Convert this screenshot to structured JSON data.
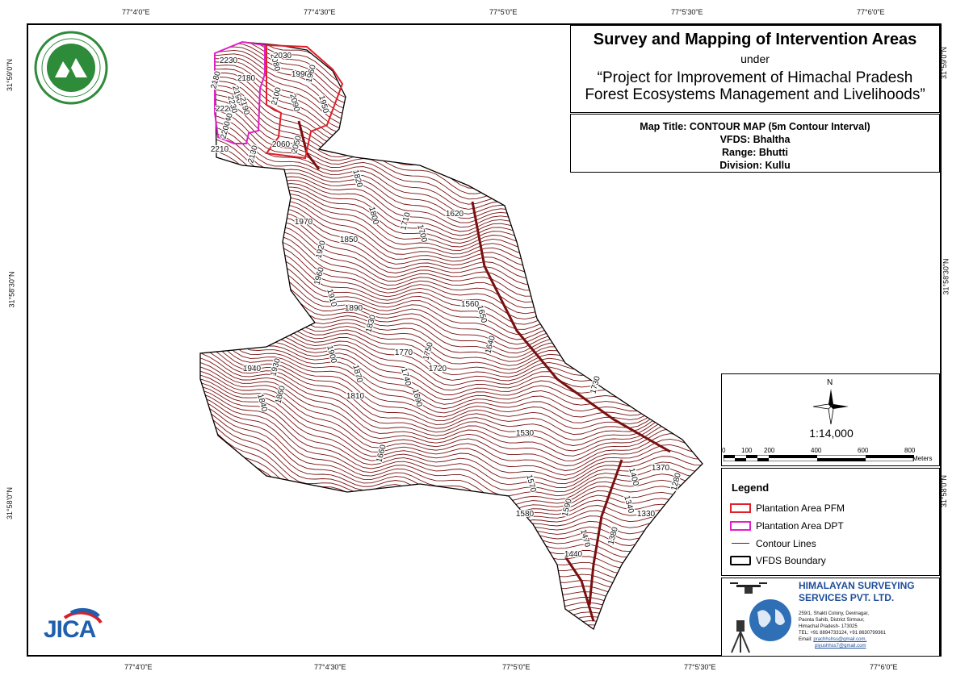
{
  "title": {
    "main": "Survey and Mapping of Intervention Areas",
    "under": "under",
    "project_line1": "“Project for Improvement of Himachal Pradesh",
    "project_line2": "Forest Ecosystems Management and Livelihoods”"
  },
  "map_info": {
    "map_title": "Map Title: CONTOUR MAP (5m Contour Interval)",
    "vfds": "VFDS: Bhaltha",
    "range": "Range: Bhutti",
    "division": "Division: Kullu"
  },
  "grid": {
    "top": [
      "77°4'0\"E",
      "77°4'30\"E",
      "77°5'0\"E",
      "77°5'30\"E",
      "77°6'0\"E"
    ],
    "bottom": [
      "77°4'0\"E",
      "77°4'30\"E",
      "77°5'0\"E",
      "77°5'30\"E",
      "77°6'0\"E"
    ],
    "left": [
      "31°59'0\"N",
      "31°58'30\"N",
      "31°58'0\"N"
    ],
    "right": [
      "31°59'0\"N",
      "31°58'30\"N",
      "31°58'0\"N"
    ]
  },
  "scale": {
    "north": "N",
    "ratio": "1:14,000",
    "ticks": [
      "0",
      "100",
      "200",
      "400",
      "600",
      "800"
    ],
    "unit": "Meters"
  },
  "legend": {
    "title": "Legend",
    "items": [
      {
        "label": "Plantation Area PFM",
        "color": "#e0202a",
        "kind": "box"
      },
      {
        "label": "Plantation Area DPT",
        "color": "#e020c8",
        "kind": "box"
      },
      {
        "label": "Contour Lines",
        "color": "#7a1010",
        "kind": "line"
      },
      {
        "label": "VFDS Boundary",
        "color": "#000000",
        "kind": "box"
      }
    ]
  },
  "company": {
    "name_line1": "HIMALAYAN SURVEYING",
    "name_line2": "SERVICES PVT. LTD.",
    "address": [
      "259/1, Shakti Colony, Devinagar,",
      "Paonta Sahib, District Sirmour,",
      "Himachal Pradesh- 173025",
      "TEL: +91 8894733124, +91 8630799361"
    ],
    "email_label": "Email:",
    "email1": "prachhshss@gmail.com,",
    "email2": "piyushhss7@gmail.com"
  },
  "logos": {
    "hp_forest": "hp-forest-department-logo",
    "jica_text": "JICA"
  },
  "contour_labels": [
    "2230",
    "2180",
    "2190",
    "2220",
    "2240",
    "2230",
    "2210",
    "2200",
    "2190",
    "2180",
    "2130",
    "2080",
    "2030",
    "2100",
    "2090",
    "1990",
    "1960",
    "1950",
    "2060",
    "2050",
    "1820",
    "1970",
    "1920",
    "1800",
    "1850",
    "1710",
    "1700",
    "1620",
    "1960",
    "1910",
    "1890",
    "1830",
    "1900",
    "1940",
    "1930",
    "1870",
    "1770",
    "1750",
    "1650",
    "1560",
    "1640",
    "1740",
    "1720",
    "1860",
    "1840",
    "1810",
    "1730",
    "1690",
    "1530",
    "1660",
    "1570",
    "1580",
    "1590",
    "1400",
    "1370",
    "1280",
    "1340",
    "1330",
    "1380",
    "1470",
    "1440"
  ],
  "colors": {
    "contour": "#7a1010",
    "pfm": "#e0202a",
    "dpt": "#e020c8",
    "brand_blue": "#1f4e9a"
  }
}
